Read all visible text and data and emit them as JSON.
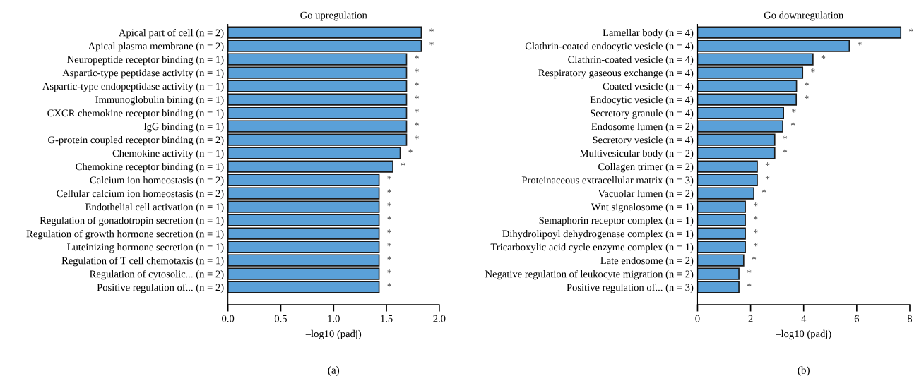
{
  "chart_data": [
    {
      "type": "bar",
      "orientation": "horizontal",
      "title": "Go upregulation",
      "xlabel": "–log10 (padj)",
      "annotations": [
        "(a)"
      ],
      "categories": [
        "Apical part of cell (n = 2)",
        "Apical plasma membrane (n = 2)",
        "Neuropeptide receptor binding (n = 1)",
        "Aspartic-type peptidase activity (n = 1)",
        "Aspartic-type endopeptidase activity (n = 1)",
        "Immunoglobulin bining (n = 1)",
        "CXCR chemokine receptor binding (n = 1)",
        "lgG binding (n = 1)",
        "G-protein coupled receptor binding (n = 2)",
        "Chemokine activity (n = 1)",
        "Chemokine receptor binding (n = 1)",
        "Calcium ion homeostasis (n = 2)",
        "Cellular calcium ion homeostasis (n = 2)",
        "Endothelial cell activation (n = 1)",
        "Regulation of gonadotropin secretion (n = 1)",
        "Regulation of growth hormone secretion (n = 1)",
        "Luteinizing hormone secretion (n = 1)",
        "Regulation of T cell chemotaxis (n = 1)",
        "Regulation of cytosolic... (n = 2)",
        "Positive regulation of... (n = 2)"
      ],
      "values": [
        1.83,
        1.83,
        1.69,
        1.69,
        1.69,
        1.69,
        1.69,
        1.69,
        1.69,
        1.63,
        1.56,
        1.43,
        1.43,
        1.43,
        1.43,
        1.43,
        1.43,
        1.43,
        1.43,
        1.43
      ],
      "value_labels": [
        "*",
        "*",
        "*",
        "*",
        "*",
        "*",
        "*",
        "*",
        "*",
        "*",
        "*",
        "*",
        "*",
        "*",
        "*",
        "*",
        "*",
        "*",
        "*",
        "*"
      ],
      "color": "#5aa0d8",
      "xlim": [
        0,
        2
      ],
      "xticks": [
        {
          "value": 0,
          "label": "0.0"
        },
        {
          "value": 0.5,
          "label": "0.5"
        },
        {
          "value": 1,
          "label": "1.0"
        },
        {
          "value": 1.5,
          "label": "1.5"
        },
        {
          "value": 2,
          "label": "2.0"
        }
      ],
      "grid": false,
      "legend": false
    },
    {
      "type": "bar",
      "orientation": "horizontal",
      "title": "Go downregulation",
      "xlabel": "–log10 (padj)",
      "annotations": [
        "(b)"
      ],
      "categories": [
        "Lamellar body (n = 4)",
        "Clathrin-coated endocytic vesicle (n = 4)",
        "Clathrin-coated vesicle (n = 4)",
        "Respiratory gaseous exchange (n = 4)",
        "Coated vesicle (n = 4)",
        "Endocytic vesicle (n = 4)",
        "Secretory granule (n = 4)",
        "Endosome lumen (n = 2)",
        "Secretory vesicle (n = 4)",
        "Multivesicular body (n = 2)",
        "Collagen trimer (n = 2)",
        "Proteinaceous extracellular matrix (n = 3)",
        "Vacuolar lumen (n = 2)",
        "Wnt signalosome (n = 1)",
        "Semaphorin receptor complex (n = 1)",
        "Dihydrolipoyl dehydrogenase complex (n = 1)",
        "Tricarboxylic acid cycle enzyme complex (n = 1)",
        "Late endosome (n = 2)",
        "Negative regulation of leukocyte migration (n = 2)",
        "Positive regulation of... (n = 3)"
      ],
      "values": [
        7.66,
        5.72,
        4.35,
        3.96,
        3.73,
        3.72,
        3.24,
        3.21,
        2.91,
        2.91,
        2.25,
        2.25,
        2.12,
        1.8,
        1.8,
        1.8,
        1.8,
        1.74,
        1.56,
        1.56
      ],
      "value_labels": [
        "*",
        "*",
        "*",
        "*",
        "*",
        "*",
        "*",
        "*",
        "*",
        "*",
        "*",
        "*",
        "*",
        "*",
        "*",
        "*",
        "*",
        "*",
        "*",
        "*"
      ],
      "color": "#5aa0d8",
      "xlim": [
        0,
        8
      ],
      "xticks": [
        0,
        2,
        4,
        6,
        8
      ],
      "grid": false,
      "legend": false
    }
  ]
}
